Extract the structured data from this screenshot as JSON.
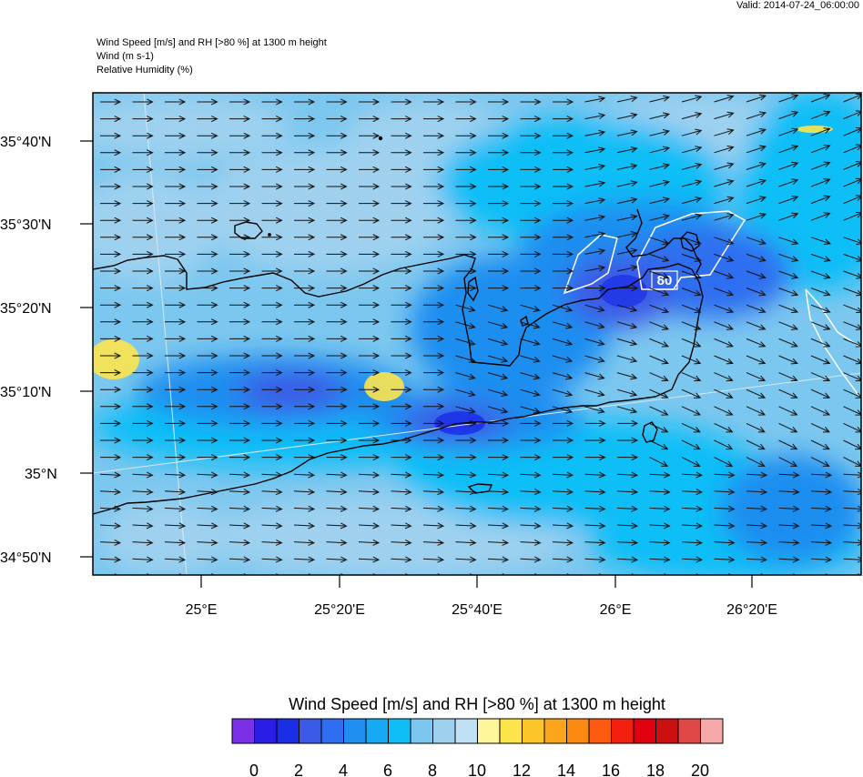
{
  "header": {
    "valid": "Valid: 2014-07-24_06:00:00",
    "title_lines": [
      "Wind Speed [m/s] and RH [>80 %] at 1300 m height",
      "Wind   (m s-1)",
      "Relative Humidity   (%)"
    ]
  },
  "map": {
    "lat_labels": [
      "35°40'N",
      "35°30'N",
      "35°20'N",
      "35°10'N",
      "35°N",
      "34°50'N"
    ],
    "lon_labels": [
      "25°E",
      "25°20'E",
      "25°40'E",
      "26°E",
      "26°20'E"
    ],
    "contour_label": "80"
  },
  "colorbar": {
    "title": "Wind Speed [m/s] and RH [>80 %] at 1300 m height",
    "labels": [
      "0",
      "2",
      "4",
      "6",
      "8",
      "10",
      "12",
      "14",
      "16",
      "18",
      "20"
    ],
    "colors": [
      "#7a2ee6",
      "#2a1ee6",
      "#1a2ee6",
      "#3a5ae6",
      "#2f6ef0",
      "#1f8ef0",
      "#16aaf5",
      "#0fbef7",
      "#7cc7ef",
      "#9fd1ef",
      "#bfe1f3",
      "#fff59a",
      "#fde44b",
      "#fcc52a",
      "#fca51a",
      "#fc8a10",
      "#fc5a10",
      "#f32010",
      "#e00010",
      "#cc1010",
      "#e04848",
      "#f7a8a8"
    ]
  }
}
